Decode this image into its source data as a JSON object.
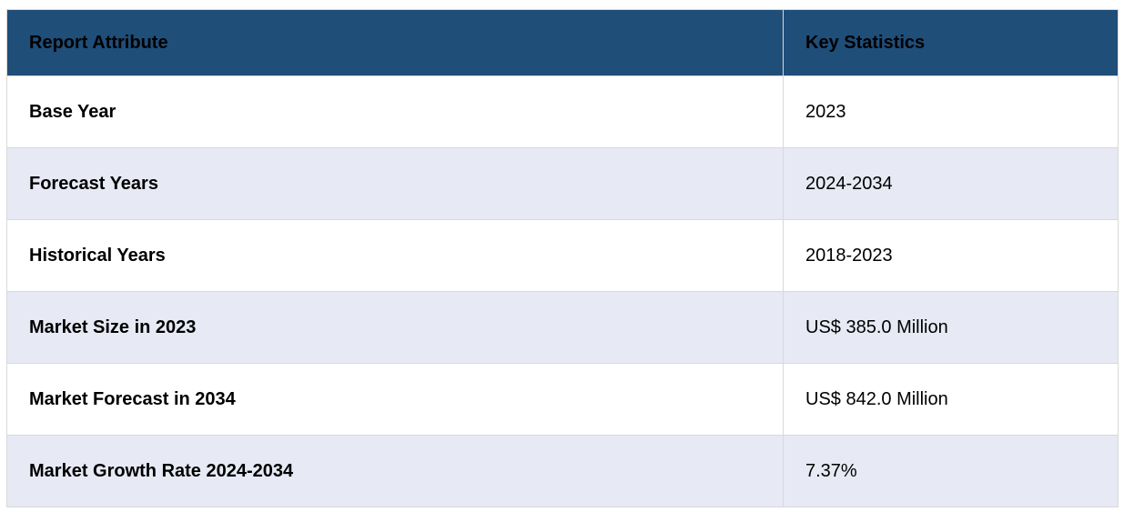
{
  "table": {
    "columns": [
      {
        "label": "Report Attribute"
      },
      {
        "label": "Key Statistics"
      }
    ],
    "rows": [
      {
        "attribute": "Base Year",
        "value": "2023"
      },
      {
        "attribute": "Forecast Years",
        "value": "2024-2034"
      },
      {
        "attribute": "Historical Years",
        "value": "2018-2023"
      },
      {
        "attribute": "Market Size in 2023",
        "value": "US$ 385.0 Million"
      },
      {
        "attribute": "Market Forecast in 2034",
        "value": "US$ 842.0 Million"
      },
      {
        "attribute": "Market Growth Rate 2024-2034",
        "value": "7.37%"
      }
    ]
  },
  "colors": {
    "header_bg": "#1f4e79",
    "header_text": "#ffffff",
    "row_bg": "#ffffff",
    "row_alt_bg": "#e7e9f4",
    "border": "#d9d9d9",
    "text": "#000000"
  }
}
